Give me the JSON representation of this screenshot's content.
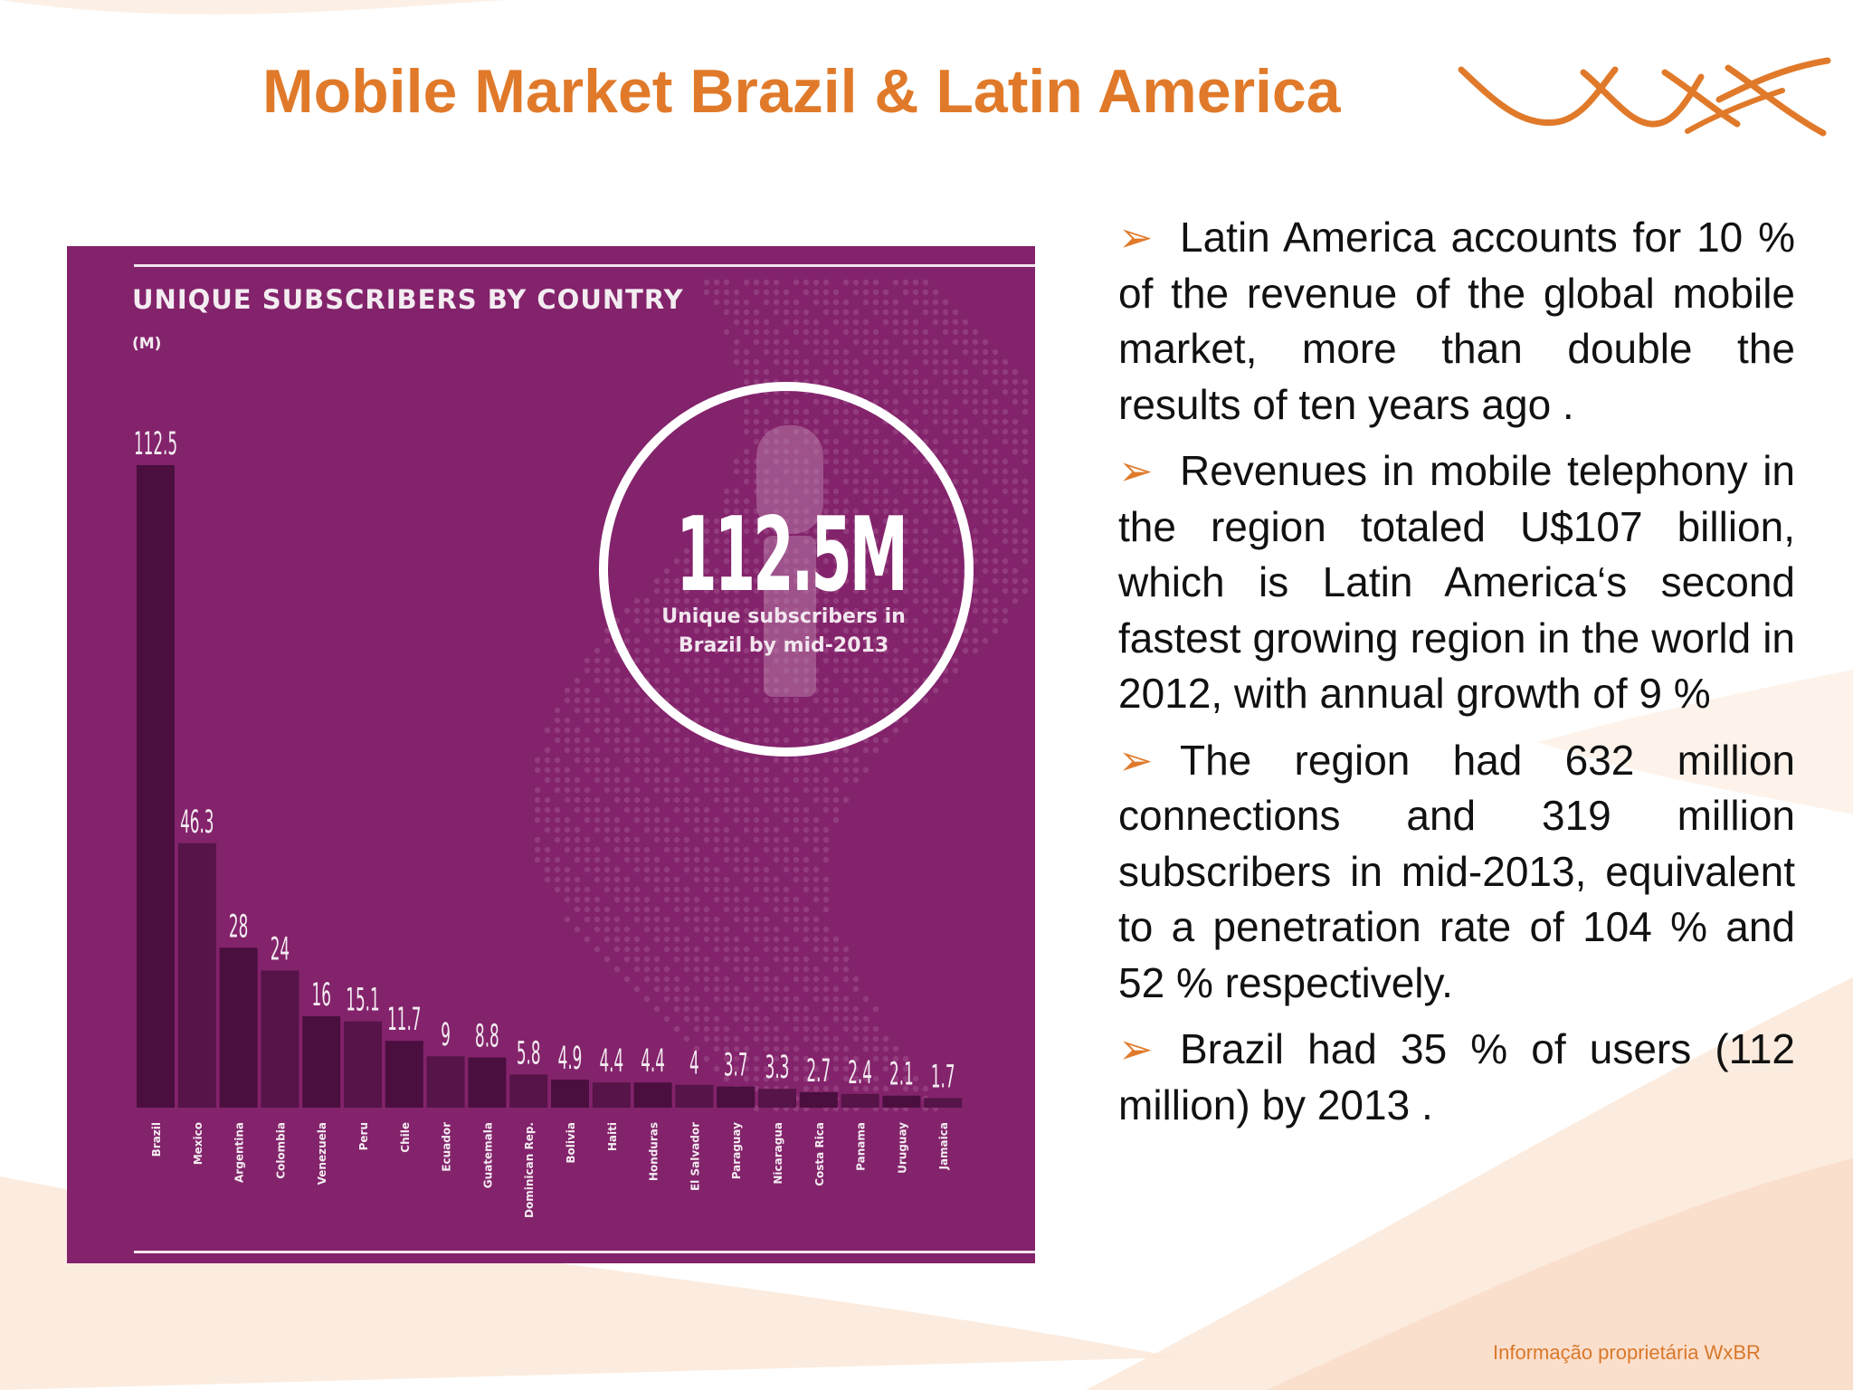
{
  "slide": {
    "title": "Mobile Market Brazil & Latin America",
    "footer": "Informação proprietária WxBR",
    "accent_color": "#e07a2a",
    "chart_bg_color": "#83236b"
  },
  "callout": {
    "value": "112.5M",
    "caption_line1": "Unique subscribers in",
    "caption_line2": "Brazil by mid-2013"
  },
  "bullets": [
    "Latin America accounts for 10 % of the revenue of the global mobile market, more than double the results of ten years ago .",
    "Revenues in mobile telephony in the region totaled U$107 billion, which is Latin America‘s second fastest growing region in the world in 2012, with annual growth of 9 %",
    "The region had 632 million connections and 319 million subscribers in mid-2013, equivalent to a penetration rate of 104 % and 52 % respectively.",
    "Brazil had 35 % of users (112 million) by 2013 ."
  ],
  "chart_data": {
    "type": "bar",
    "title": "UNIQUE SUBSCRIBERS BY COUNTRY",
    "unit": "(M)",
    "categories": [
      "Brazil",
      "Mexico",
      "Argentina",
      "Colombia",
      "Venezuela",
      "Peru",
      "Chile",
      "Ecuador",
      "Guatemala",
      "Dominican Rep.",
      "Bolivia",
      "Haiti",
      "Honduras",
      "El Salvador",
      "Paraguay",
      "Nicaragua",
      "Costa Rica",
      "Panama",
      "Uruguay",
      "Jamaica"
    ],
    "values": [
      112.5,
      46.3,
      28,
      24,
      16,
      15.1,
      11.7,
      9,
      8.8,
      5.8,
      4.9,
      4.4,
      4.4,
      4,
      3.7,
      3.3,
      2.7,
      2.4,
      2.1,
      1.7
    ],
    "value_labels": [
      "112.5",
      "46.3",
      "28",
      "24",
      "16",
      "15.1",
      "11.7",
      "9",
      "8.8",
      "5.8",
      "4.9",
      "4.4",
      "4.4",
      "4",
      "3.7",
      "3.3",
      "2.7",
      "2.4",
      "2.1",
      "1.7"
    ],
    "ylim": [
      0,
      112.5
    ],
    "grid": false,
    "bar_color": "#4e1040"
  }
}
